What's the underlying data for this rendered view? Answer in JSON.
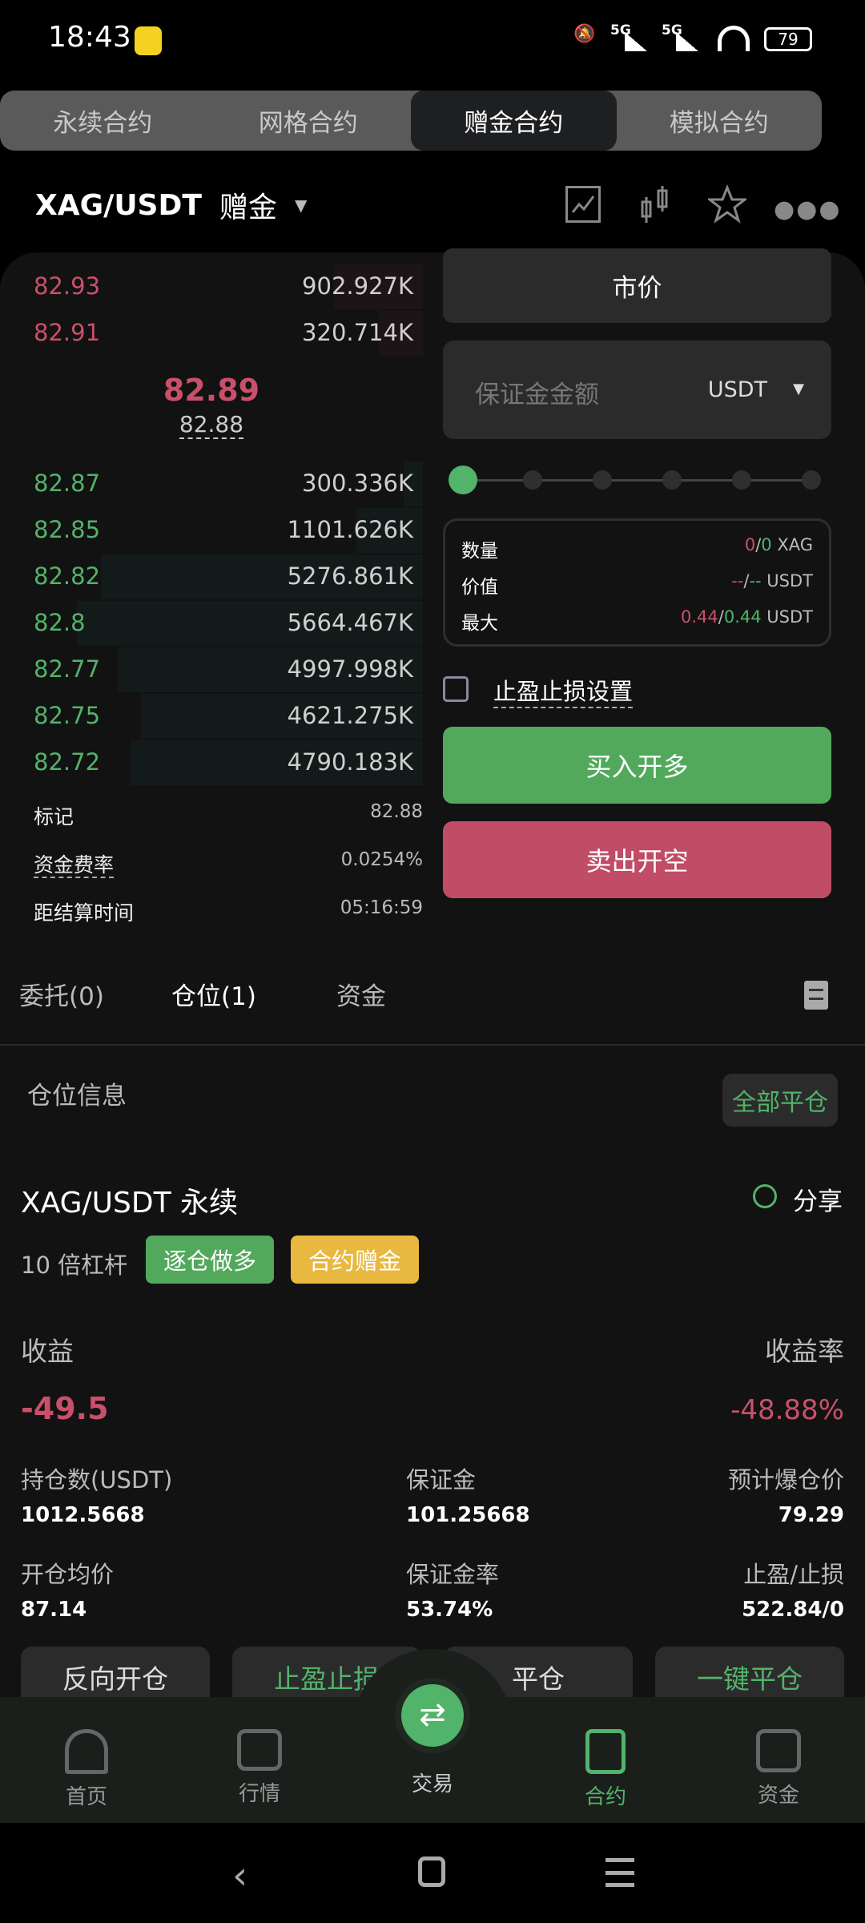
{
  "status_bar": {
    "time": "18:43",
    "network1": "5G",
    "network2": "5G",
    "battery": "79"
  },
  "contract_tabs": [
    {
      "label": "永续合约",
      "active": false
    },
    {
      "label": "网格合约",
      "active": false
    },
    {
      "label": "赠金合约",
      "active": true
    },
    {
      "label": "模拟合约",
      "active": false
    }
  ],
  "header": {
    "pair": "XAG/USDT",
    "mode": "赠金",
    "icons": [
      "chart-line-icon",
      "candlestick-icon",
      "star-icon",
      "more-icon"
    ]
  },
  "order_book": {
    "asks": [
      {
        "price": "82.93",
        "qty": "902.927K"
      },
      {
        "price": "82.91",
        "qty": "320.714K"
      }
    ],
    "last_price": "82.89",
    "mark_price": "82.88",
    "bids": [
      {
        "price": "82.87",
        "qty": "300.336K"
      },
      {
        "price": "82.85",
        "qty": "1101.626K"
      },
      {
        "price": "82.82",
        "qty": "5276.861K"
      },
      {
        "price": "82.8",
        "qty": "5664.467K"
      },
      {
        "price": "82.77",
        "qty": "4997.998K"
      },
      {
        "price": "82.75",
        "qty": "4621.275K"
      },
      {
        "price": "82.72",
        "qty": "4790.183K"
      }
    ],
    "info": [
      {
        "label": "标记",
        "value": "82.88"
      },
      {
        "label": "资金费率",
        "value": "0.0254%"
      },
      {
        "label": "距结算时间",
        "value": "05:16:59"
      }
    ]
  },
  "order_form": {
    "order_type": "市价",
    "margin_placeholder": "保证金金额",
    "margin_unit": "USDT",
    "slider_percent": 0,
    "summary": [
      {
        "label": "数量",
        "buy": "0",
        "sell": "0",
        "unit": "XAG"
      },
      {
        "label": "价值",
        "buy": "--",
        "sell": "--",
        "unit": "USDT"
      },
      {
        "label": "最大",
        "buy": "0.44",
        "sell": "0.44",
        "unit": "USDT"
      }
    ],
    "tpsl_label": "止盈止损设置",
    "tpsl_checked": false,
    "buy_label": "买入开多",
    "sell_label": "卖出开空"
  },
  "bottom_tabs": [
    {
      "label": "委托(0)",
      "active": false
    },
    {
      "label": "仓位(1)",
      "active": true
    },
    {
      "label": "资金",
      "active": false
    }
  ],
  "positions": {
    "section_title": "仓位信息",
    "close_all": "全部平仓",
    "symbol": "XAG/USDT 永续",
    "share": "分享",
    "leverage": "10 倍杠杆",
    "badges": [
      {
        "label": "逐仓做多",
        "color": "#52a95c"
      },
      {
        "label": "合约赠金",
        "color": "#e8b840"
      }
    ],
    "pnl_label": "收益",
    "pnl": "-49.5",
    "roe_label": "收益率",
    "roe": "-48.88%",
    "fields": [
      {
        "label": "持仓数(USDT)",
        "value": "1012.5668"
      },
      {
        "label": "保证金",
        "value": "101.25668"
      },
      {
        "label": "预计爆仓价",
        "value": "79.29"
      },
      {
        "label": "开仓均价",
        "value": "87.14"
      },
      {
        "label": "保证金率",
        "value": "53.74%"
      },
      {
        "label": "止盈/止损",
        "value": "522.84/0"
      }
    ],
    "actions": [
      "反向开仓",
      "止盈止损",
      "平仓",
      "一键平仓"
    ]
  },
  "bottom_nav": [
    {
      "label": "首页",
      "icon": "home-icon"
    },
    {
      "label": "行情",
      "icon": "market-icon"
    },
    {
      "label": "交易",
      "icon": "swap-icon"
    },
    {
      "label": "合约",
      "icon": "contract-icon",
      "active": true
    },
    {
      "label": "资金",
      "icon": "wallet-icon"
    }
  ],
  "colors": {
    "up": "#52b36a",
    "down": "#c9506a",
    "buy": "#52a95c",
    "sell": "#c04c65"
  }
}
